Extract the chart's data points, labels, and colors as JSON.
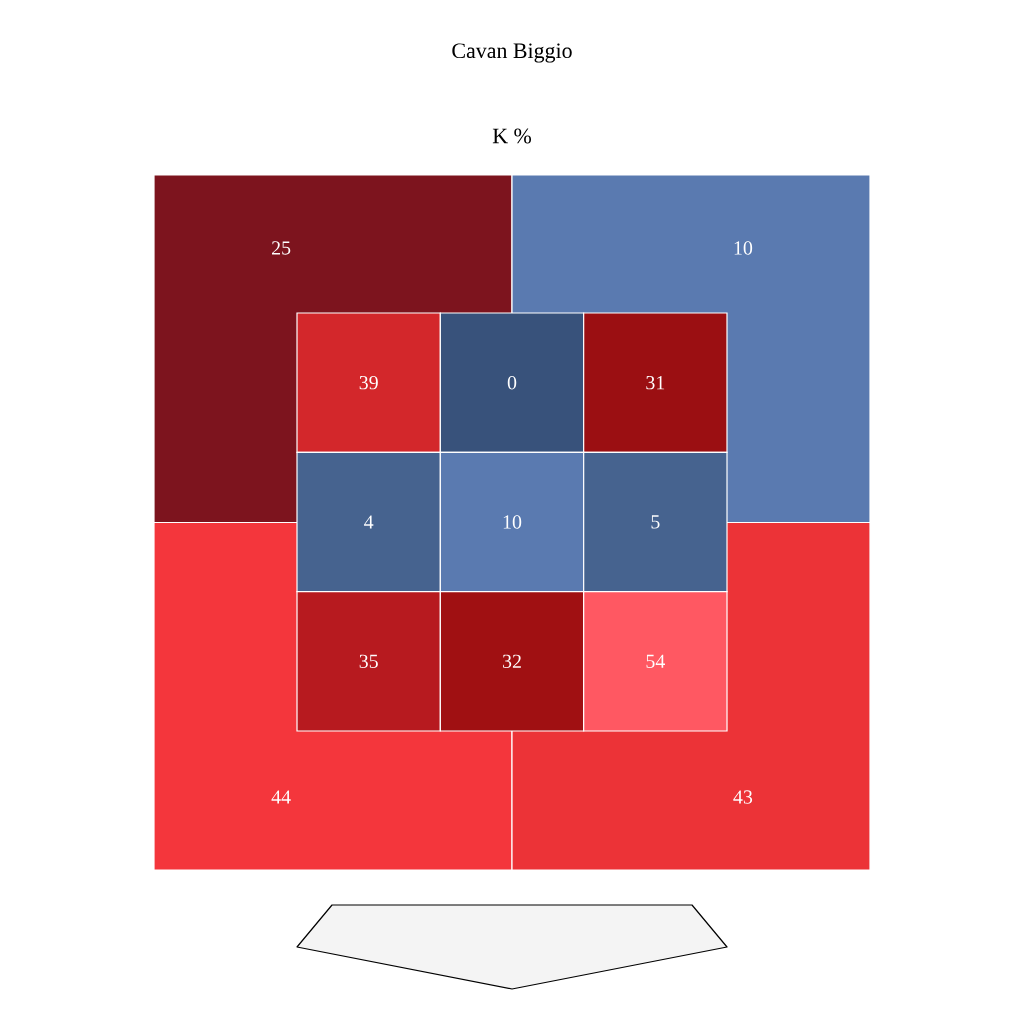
{
  "chart_data": [
    {
      "type": "heatmap",
      "title": "Cavan Biggio",
      "subtitle": "K %",
      "data_labels": true,
      "categories": [
        null,
        null
      ],
      "y_categories": [
        null,
        null
      ],
      "cells": [
        [
          25,
          10
        ],
        [
          44,
          43
        ]
      ],
      "colors": [
        [
          "#7d141e",
          "#5a7ab0"
        ],
        [
          "#f4363c",
          "#ec3337"
        ]
      ]
    },
    {
      "type": "heatmap",
      "data_labels": true,
      "categories": [
        null,
        null,
        null
      ],
      "y_categories": [
        null,
        null,
        null
      ],
      "cells": [
        [
          39,
          0,
          31
        ],
        [
          4,
          10,
          5
        ],
        [
          35,
          32,
          54
        ]
      ],
      "colors": [
        [
          "#d3272b",
          "#38527b",
          "#9b0f12"
        ],
        [
          "#46638f",
          "#5a7ab0",
          "#46638f"
        ],
        [
          "#b71a1f",
          "#a01012",
          "#ff5862"
        ]
      ]
    }
  ]
}
